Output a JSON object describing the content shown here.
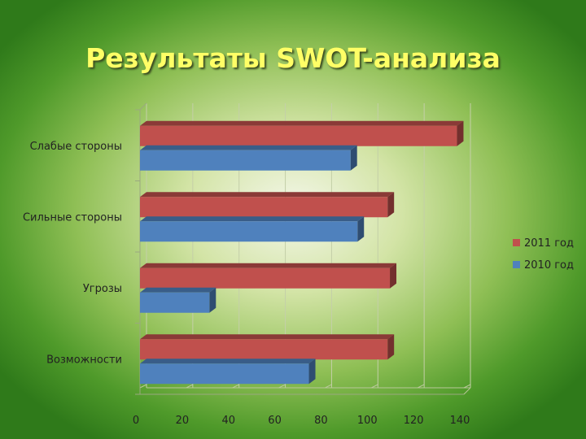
{
  "title": "Результаты SWOT-анализа",
  "chart_data": {
    "type": "bar",
    "orientation": "horizontal",
    "categories": [
      "Возможности",
      "Угрозы",
      "Сильные стороны",
      "Слабые стороны"
    ],
    "series": [
      {
        "name": "2011 год",
        "color": "#c0504d",
        "values": [
          107,
          108,
          107,
          137
        ]
      },
      {
        "name": "2010 год",
        "color": "#4f81bd",
        "values": [
          73,
          30,
          94,
          91
        ]
      }
    ],
    "xticks": [
      "0",
      "20",
      "40",
      "60",
      "80",
      "100",
      "120",
      "140"
    ],
    "xlim": [
      0,
      140
    ],
    "legend_position": "right",
    "grid": true,
    "style": "3d"
  }
}
